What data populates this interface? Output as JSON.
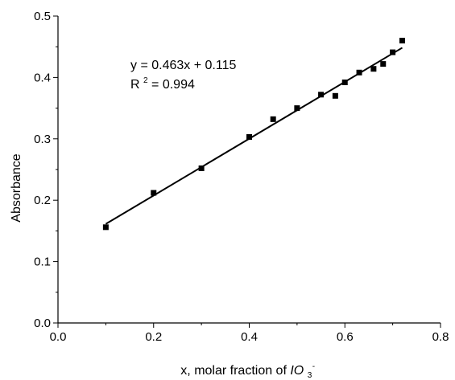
{
  "chart_data": {
    "type": "scatter",
    "title": "",
    "xlabel_parts": [
      "x, molar fraction of ",
      "IO",
      "3",
      "-"
    ],
    "ylabel": "Absorbance",
    "xlim": [
      0.0,
      0.8
    ],
    "ylim": [
      0.0,
      0.5
    ],
    "x_ticks": [
      "0.0",
      "0.2",
      "0.4",
      "0.6",
      "0.8"
    ],
    "y_ticks": [
      "0.0",
      "0.1",
      "0.2",
      "0.3",
      "0.4",
      "0.5"
    ],
    "grid": false,
    "points": [
      {
        "x": 0.1,
        "y": 0.156
      },
      {
        "x": 0.2,
        "y": 0.212
      },
      {
        "x": 0.3,
        "y": 0.252
      },
      {
        "x": 0.4,
        "y": 0.303
      },
      {
        "x": 0.45,
        "y": 0.332
      },
      {
        "x": 0.5,
        "y": 0.35
      },
      {
        "x": 0.55,
        "y": 0.372
      },
      {
        "x": 0.58,
        "y": 0.37
      },
      {
        "x": 0.6,
        "y": 0.392
      },
      {
        "x": 0.63,
        "y": 0.408
      },
      {
        "x": 0.66,
        "y": 0.414
      },
      {
        "x": 0.68,
        "y": 0.422
      },
      {
        "x": 0.7,
        "y": 0.441
      },
      {
        "x": 0.72,
        "y": 0.46
      }
    ],
    "fit": {
      "slope": 0.463,
      "intercept": 0.115,
      "x_range": [
        0.1,
        0.72
      ]
    },
    "equation_text": "y = 0.463x + 0.115",
    "r2_prefix": "R",
    "r2_sup": "2",
    "r2_suffix": " = 0.994",
    "marker_color": "#000000",
    "line_color": "#000000"
  }
}
